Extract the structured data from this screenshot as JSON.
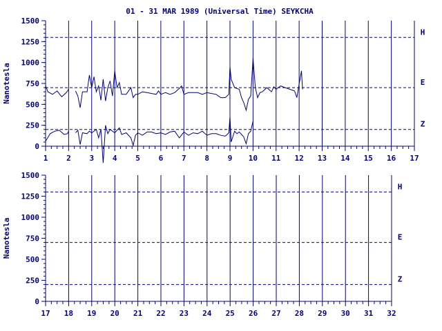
{
  "title": "01 - 31 MAR 1989 (Universal Time) SEYKCHA",
  "colors": {
    "ink": "#000080",
    "background": "#ffffff"
  },
  "chart_data": [
    {
      "type": "line",
      "ylabel": "Nanotesla",
      "xlim": [
        1,
        17
      ],
      "ylim": [
        0,
        1500
      ],
      "x_ticks": [
        "1",
        "2",
        "3",
        "4",
        "5",
        "6",
        "7",
        "8",
        "9",
        "10",
        "11",
        "12",
        "13",
        "14",
        "15",
        "16",
        "17"
      ],
      "y_ticks": [
        "0",
        "250",
        "500",
        "750",
        "1000",
        "1250",
        "1500"
      ],
      "grid": "vertical solid at each day",
      "baselines": [
        {
          "label": "H",
          "value": 1300
        },
        {
          "label": "E",
          "value": 700
        },
        {
          "label": "Z",
          "value": 200
        }
      ],
      "series": [
        {
          "channel": "E",
          "x": [
            1.0,
            1.1,
            1.3,
            1.5,
            1.7,
            1.9,
            2.0,
            2.05,
            2.3,
            2.4,
            2.5,
            2.6,
            2.8,
            2.9,
            3.0,
            3.1,
            3.2,
            3.3,
            3.4,
            3.5,
            3.6,
            3.7,
            3.8,
            3.9,
            4.0,
            4.1,
            4.2,
            4.3,
            4.5,
            4.7,
            4.8,
            4.9,
            5.0,
            5.2,
            5.4,
            5.6,
            5.8,
            5.9,
            6.0,
            6.2,
            6.4,
            6.6,
            6.8,
            6.9,
            7.0,
            7.2,
            7.4,
            7.6,
            7.8,
            8.0,
            8.2,
            8.4,
            8.6,
            8.8,
            8.95,
            9.0,
            9.05,
            9.2,
            9.3,
            9.4,
            9.5,
            9.6,
            9.7,
            9.8,
            9.9,
            10.0,
            10.1,
            10.2,
            10.3,
            10.4,
            10.6,
            10.8,
            10.9,
            11.0,
            11.2,
            11.4,
            11.6,
            11.8,
            11.9,
            12.0,
            12.05,
            12.1,
            12.15
          ],
          "y": [
            720,
            650,
            620,
            660,
            590,
            640,
            680,
            null,
            660,
            600,
            460,
            650,
            650,
            850,
            700,
            830,
            650,
            720,
            550,
            800,
            540,
            700,
            780,
            600,
            900,
            700,
            760,
            620,
            620,
            700,
            580,
            620,
            620,
            650,
            640,
            630,
            620,
            660,
            620,
            640,
            620,
            640,
            690,
            720,
            620,
            640,
            640,
            640,
            620,
            640,
            630,
            620,
            580,
            580,
            620,
            950,
            800,
            700,
            690,
            680,
            580,
            520,
            430,
            560,
            600,
            1050,
            700,
            580,
            640,
            650,
            700,
            650,
            710,
            680,
            720,
            700,
            680,
            660,
            580,
            740,
            820,
            900,
            680
          ]
        },
        {
          "channel": "Z",
          "x": [
            1.0,
            1.2,
            1.4,
            1.6,
            1.8,
            1.95,
            2.0,
            2.05,
            2.3,
            2.4,
            2.5,
            2.6,
            2.8,
            2.9,
            3.0,
            3.2,
            3.3,
            3.4,
            3.5,
            3.6,
            3.7,
            3.8,
            4.0,
            4.2,
            4.3,
            4.5,
            4.7,
            4.8,
            4.9,
            5.0,
            5.2,
            5.4,
            5.6,
            5.8,
            6.0,
            6.2,
            6.4,
            6.6,
            6.8,
            7.0,
            7.2,
            7.4,
            7.6,
            7.8,
            8.0,
            8.2,
            8.4,
            8.6,
            8.8,
            8.95,
            9.0,
            9.05,
            9.2,
            9.3,
            9.4,
            9.5,
            9.6,
            9.7,
            9.8,
            9.9,
            10.0
          ],
          "y": [
            60,
            150,
            180,
            190,
            140,
            150,
            180,
            null,
            160,
            190,
            20,
            160,
            150,
            180,
            160,
            200,
            100,
            200,
            -200,
            250,
            150,
            200,
            160,
            220,
            140,
            160,
            100,
            10,
            130,
            160,
            130,
            170,
            170,
            150,
            160,
            140,
            170,
            180,
            100,
            170,
            130,
            160,
            150,
            180,
            130,
            150,
            150,
            130,
            120,
            160,
            350,
            50,
            180,
            150,
            170,
            140,
            110,
            30,
            150,
            180,
            300
          ]
        }
      ]
    },
    {
      "type": "line",
      "ylabel": "Nanotesla",
      "xlim": [
        17,
        32
      ],
      "ylim": [
        0,
        1500
      ],
      "x_ticks": [
        "17",
        "18",
        "19",
        "20",
        "21",
        "22",
        "23",
        "24",
        "25",
        "26",
        "27",
        "28",
        "29",
        "30",
        "31",
        "32"
      ],
      "y_ticks": [
        "0",
        "250",
        "500",
        "750",
        "1000",
        "1250",
        "1500"
      ],
      "grid": "vertical solid at each day",
      "baselines": [
        {
          "label": "H",
          "value": 1300
        },
        {
          "label": "E",
          "value": 700
        },
        {
          "label": "Z",
          "value": 200
        }
      ],
      "series": []
    }
  ]
}
